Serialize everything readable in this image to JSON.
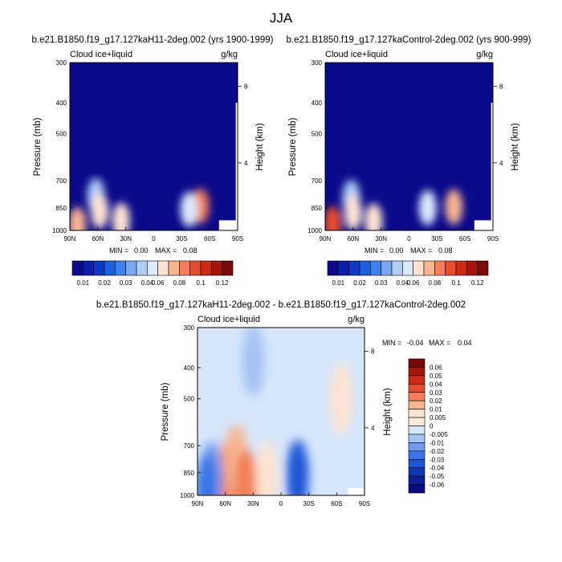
{
  "figure_title": "JJA",
  "chart_data": [
    {
      "type": "heatmap",
      "title": "b.e21.B1850.f19_g17.127kaH11-2deg.002 (yrs 1900-1999)",
      "left_label": "Cloud ice+liquid",
      "right_label": "g/kg",
      "xlabel": "",
      "ylabel": "Pressure (mb)",
      "ylabel_right": "Height (km)",
      "x_ticks": [
        "90N",
        "60N",
        "30N",
        "0",
        "30S",
        "60S",
        "90S"
      ],
      "y_ticks": [
        "300",
        "400",
        "500",
        "700",
        "850",
        "1000"
      ],
      "y_right_ticks": [
        "8",
        "4"
      ],
      "xlim": [
        90,
        -90
      ],
      "ylim": [
        1000,
        300
      ],
      "stats": {
        "min_label": "MIN =",
        "min": "0.00",
        "max_label": "MAX =",
        "max": "0.08"
      },
      "features": [
        {
          "lat": 62,
          "p": 780,
          "value": 0.035
        },
        {
          "lat": 58,
          "p": 870,
          "value": 0.05
        },
        {
          "lat": 82,
          "p": 960,
          "value": 0.055
        },
        {
          "lat": 35,
          "p": 930,
          "value": 0.045
        },
        {
          "lat": -50,
          "p": 840,
          "value": 0.065
        },
        {
          "lat": -38,
          "p": 860,
          "value": 0.04
        }
      ]
    },
    {
      "type": "heatmap",
      "title": "b.e21.B1850.f19_g17.127kaControl-2deg.002 (yrs 900-999)",
      "left_label": "Cloud ice+liquid",
      "right_label": "g/kg",
      "xlabel": "",
      "ylabel": "Pressure (mb)",
      "ylabel_right": "Height (km)",
      "x_ticks": [
        "90N",
        "60N",
        "30N",
        "0",
        "30S",
        "60S",
        "90S"
      ],
      "y_ticks": [
        "300",
        "400",
        "500",
        "700",
        "850",
        "1000"
      ],
      "y_right_ticks": [
        "8",
        "4"
      ],
      "xlim": [
        90,
        -90
      ],
      "ylim": [
        1000,
        300
      ],
      "stats": {
        "min_label": "MIN =",
        "min": "0.00",
        "max_label": "MAX =",
        "max": "0.08"
      },
      "features": [
        {
          "lat": 62,
          "p": 790,
          "value": 0.035
        },
        {
          "lat": 60,
          "p": 880,
          "value": 0.045
        },
        {
          "lat": 82,
          "p": 955,
          "value": 0.075
        },
        {
          "lat": 38,
          "p": 935,
          "value": 0.045
        },
        {
          "lat": -48,
          "p": 845,
          "value": 0.06
        },
        {
          "lat": -20,
          "p": 850,
          "value": 0.04
        }
      ]
    },
    {
      "type": "heatmap",
      "title": "b.e21.B1850.f19_g17.127kaH11-2deg.002 - b.e21.B1850.f19_g17.127kaControl-2deg.002",
      "left_label": "Cloud ice+liquid",
      "right_label": "g/kg",
      "xlabel": "",
      "ylabel": "Pressure (mb)",
      "ylabel_right": "Height (km)",
      "x_ticks": [
        "90N",
        "60N",
        "30N",
        "0",
        "30S",
        "60S",
        "90S"
      ],
      "y_ticks": [
        "300",
        "400",
        "500",
        "700",
        "850",
        "1000"
      ],
      "y_right_ticks": [
        "8",
        "4"
      ],
      "xlim": [
        90,
        -90
      ],
      "ylim": [
        1000,
        300
      ],
      "stats": {
        "min_label": "MIN =",
        "min": "-0.04",
        "max_label": "MAX =",
        "max": "0.04"
      },
      "features": [
        {
          "lat": 55,
          "p": 860,
          "value": 0.02
        },
        {
          "lat": 48,
          "p": 780,
          "value": 0.01
        },
        {
          "lat": 38,
          "p": 930,
          "value": 0.02
        },
        {
          "lat": -65,
          "p": 500,
          "value": 0.005
        },
        {
          "lat": 15,
          "p": 880,
          "value": 0.005
        },
        {
          "lat": 75,
          "p": 880,
          "value": -0.01
        },
        {
          "lat": 80,
          "p": 960,
          "value": -0.015
        },
        {
          "lat": -18,
          "p": 870,
          "value": -0.03
        },
        {
          "lat": 30,
          "p": 380,
          "value": -0.005
        }
      ]
    }
  ],
  "colorbars": {
    "absolute": {
      "labels": [
        "0.01",
        "0.02",
        "0.03",
        "0.04",
        "0.06",
        "0.08",
        "0.1",
        "0.12"
      ],
      "colors": [
        "#0a0a8a",
        "#0b1fa8",
        "#0d3ac4",
        "#1a5fe0",
        "#3f82ee",
        "#78a8f2",
        "#b0cdf6",
        "#dbe9fb",
        "#fde4d2",
        "#f8b58f",
        "#f27f57",
        "#e74c2c",
        "#cc2a14",
        "#a5150a",
        "#7a0a06"
      ]
    },
    "difference": {
      "labels": [
        "0.06",
        "0.05",
        "0.04",
        "0.03",
        "0.02",
        "0.01",
        "0.005",
        "0",
        "-0.005",
        "-0.01",
        "-0.02",
        "-0.03",
        "-0.04",
        "-0.05",
        "-0.06"
      ],
      "colors": [
        "#7a0a06",
        "#a5150a",
        "#cc2a14",
        "#e74c2c",
        "#f27f57",
        "#f8b58f",
        "#fde4d2",
        "#fde9dc",
        "#d6e6fb",
        "#a4c3f2",
        "#6d9cee",
        "#3b76e6",
        "#1a56d6",
        "#0e38b4",
        "#0b1f98",
        "#0a0a80"
      ]
    }
  }
}
